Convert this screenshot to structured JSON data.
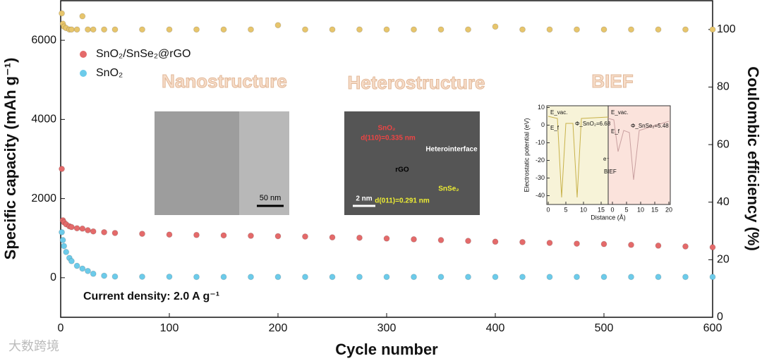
{
  "chart_data": {
    "type": "scatter",
    "xlabel": "Cycle number",
    "ylabel": "Specific capacity (mAh g⁻¹)",
    "y2label": "Coulombic efficiency (%)",
    "xlim": [
      0,
      600
    ],
    "xticks": [
      0,
      100,
      200,
      300,
      400,
      500,
      600
    ],
    "ylim": [
      -1000,
      7000
    ],
    "yticks": [
      0,
      2000,
      4000,
      6000
    ],
    "y2lim": [
      0,
      110
    ],
    "y2ticks": [
      0,
      20,
      40,
      60,
      80,
      100
    ],
    "legend": "upper left",
    "x": [
      1,
      2,
      3,
      5,
      8,
      10,
      15,
      20,
      25,
      30,
      40,
      50,
      75,
      100,
      125,
      150,
      175,
      200,
      225,
      250,
      275,
      300,
      325,
      350,
      375,
      400,
      425,
      450,
      475,
      500,
      525,
      550,
      575,
      600
    ],
    "series": [
      {
        "name": "SnO₂/SnSe₂@rGO",
        "color": "#e46a6a",
        "values": [
          2750,
          1450,
          1400,
          1350,
          1300,
          1280,
          1250,
          1240,
          1200,
          1170,
          1150,
          1130,
          1110,
          1090,
          1080,
          1070,
          1060,
          1050,
          1040,
          1020,
          1010,
          990,
          970,
          950,
          930,
          910,
          900,
          880,
          860,
          850,
          830,
          810,
          790,
          770
        ]
      },
      {
        "name": "SnO₂",
        "color": "#6ccbea",
        "values": [
          1150,
          950,
          800,
          650,
          500,
          420,
          300,
          230,
          170,
          100,
          50,
          30,
          25,
          25,
          20,
          20,
          20,
          20,
          20,
          20,
          20,
          20,
          20,
          20,
          20,
          20,
          20,
          20,
          20,
          20,
          20,
          20,
          20,
          20
        ]
      },
      {
        "name": "Coulombic efficiency",
        "color": "#e7c56c",
        "axis": "y2",
        "values": [
          105.6,
          102,
          101,
          100.5,
          100,
          100,
          100,
          104.6,
          100,
          100,
          100,
          100,
          100,
          100,
          100,
          100,
          100,
          101.5,
          100,
          100,
          100,
          100,
          100,
          100,
          100,
          101,
          100,
          100,
          100,
          100,
          100,
          100,
          100,
          100
        ]
      }
    ],
    "annotations": [
      "Current density: 2.0 A g⁻¹",
      "Nanostructure",
      "Heterostructure",
      "BIEF"
    ]
  },
  "insets": {
    "tem1": {
      "scale": "50 nm"
    },
    "tem2": {
      "labels": [
        "SnO₂",
        "d(110)=0.335 nm",
        "Heterointerface",
        "rGO",
        "SnSe₂",
        "d(011)=0.291 nm",
        "2 nm"
      ]
    },
    "dft": {
      "ylabel": "Electrostatic potential (eV)",
      "xlabel": "Distance (Å)",
      "ylim": [
        -45,
        11
      ],
      "yticks": [
        10,
        0,
        -10,
        -20,
        -30,
        -40
      ],
      "xlim_left": [
        0,
        17
      ],
      "xticks_left": [
        0,
        5,
        10,
        15
      ],
      "xlim_right": [
        0,
        20
      ],
      "xticks_right": [
        0,
        5,
        10,
        15,
        20
      ],
      "labels": [
        "E_vac.",
        "E_f",
        "Φ_SnO₂=6.68",
        "E_vac.",
        "E_f",
        "Φ_SnSe₂=5.48",
        "e⁻",
        "BIEF"
      ]
    }
  },
  "watermark": "大数跨境"
}
